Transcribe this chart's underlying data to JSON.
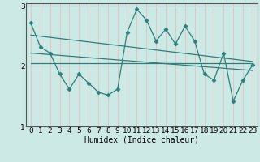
{
  "xlabel": "Humidex (Indice chaleur)",
  "xlim": [
    -0.5,
    23.5
  ],
  "ylim": [
    1,
    3.05
  ],
  "yticks": [
    1,
    2,
    3
  ],
  "xticks": [
    0,
    1,
    2,
    3,
    4,
    5,
    6,
    7,
    8,
    9,
    10,
    11,
    12,
    13,
    14,
    15,
    16,
    17,
    18,
    19,
    20,
    21,
    22,
    23
  ],
  "bg_color": "#cce9e5",
  "line_color": "#2d7f7a",
  "grid_color_v": "#e8b8b8",
  "grid_color_h": "#c8dede",
  "main_line": {
    "x": [
      0,
      1,
      2,
      3,
      4,
      5,
      6,
      7,
      8,
      9,
      10,
      11,
      12,
      13,
      14,
      15,
      16,
      17,
      18,
      19,
      20,
      21,
      22,
      23
    ],
    "y": [
      2.72,
      2.32,
      2.22,
      1.87,
      1.62,
      1.87,
      1.72,
      1.57,
      1.52,
      1.62,
      2.57,
      2.95,
      2.77,
      2.42,
      2.62,
      2.37,
      2.67,
      2.42,
      1.87,
      1.77,
      2.22,
      1.42,
      1.77,
      2.02
    ]
  },
  "line2": {
    "x": [
      0,
      23
    ],
    "y": [
      2.52,
      2.08
    ]
  },
  "line3": {
    "x": [
      0,
      23
    ],
    "y": [
      2.22,
      1.93
    ]
  },
  "line4": {
    "x": [
      0,
      23
    ],
    "y": [
      2.05,
      2.05
    ]
  }
}
